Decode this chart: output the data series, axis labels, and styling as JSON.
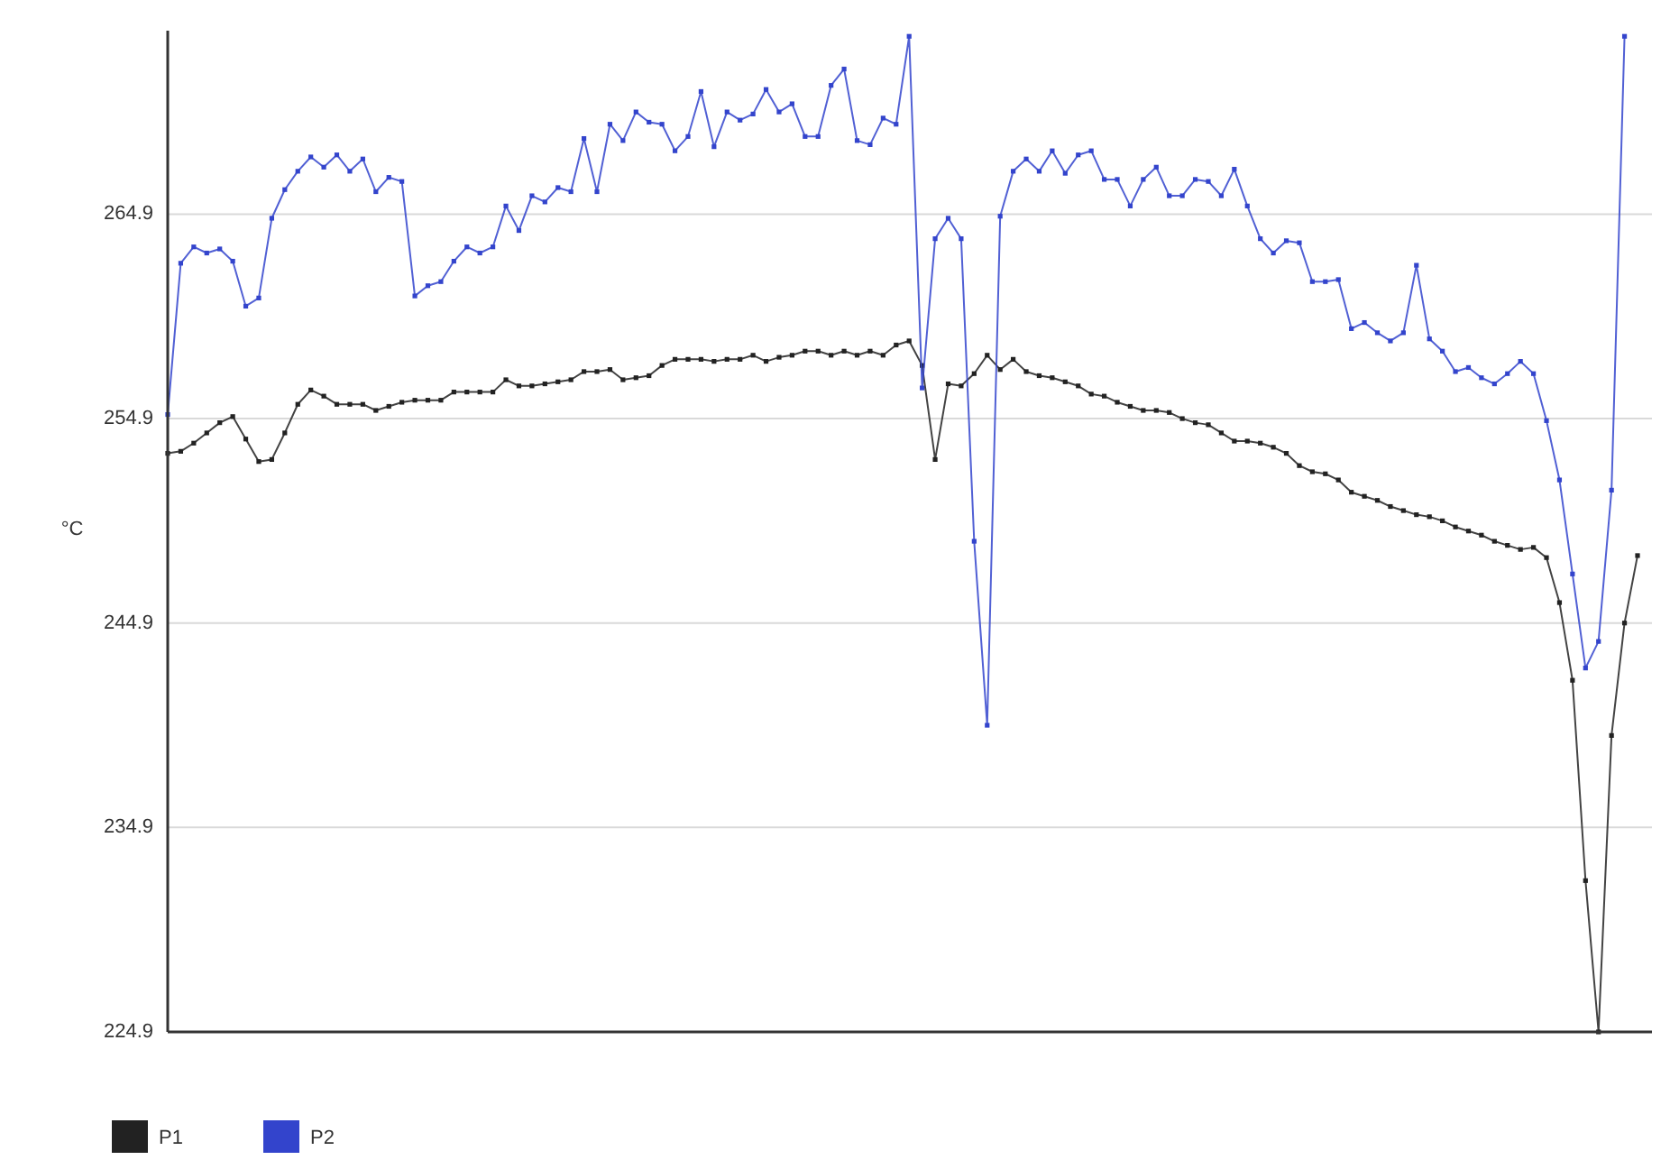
{
  "chart_data": {
    "type": "line",
    "ylabel": "°C",
    "categories": [
      null,
      null,
      null,
      null,
      null,
      null,
      null,
      null,
      null,
      null,
      null,
      null,
      null,
      null,
      null,
      null,
      null,
      null,
      null,
      null,
      null,
      null,
      null,
      null,
      null,
      null,
      null,
      null,
      null,
      null,
      null,
      null,
      null,
      null,
      null,
      null,
      null,
      null,
      null,
      null,
      null,
      null,
      null,
      null,
      null,
      null,
      null,
      null,
      null,
      null,
      null,
      null,
      null,
      null,
      null,
      null,
      null,
      null,
      null,
      null,
      null,
      null,
      null,
      null,
      null,
      null,
      null,
      null,
      null,
      null,
      null,
      null,
      null,
      null,
      null,
      null,
      null,
      null,
      null,
      null,
      null,
      null,
      null,
      null,
      null,
      null,
      null,
      null,
      null,
      null,
      null,
      null,
      null,
      null,
      null,
      null,
      null,
      null,
      null,
      null,
      null,
      null,
      null,
      null,
      null,
      null,
      null,
      null,
      null,
      null,
      null,
      null,
      null,
      null
    ],
    "series": [
      {
        "name": "P1",
        "color": "#222222",
        "values": [
          253.2,
          253.3,
          253.7,
          254.2,
          254.7,
          255.0,
          253.9,
          252.8,
          252.9,
          254.2,
          255.6,
          256.3,
          256.0,
          255.6,
          255.6,
          255.6,
          255.3,
          255.5,
          255.7,
          255.8,
          255.8,
          255.8,
          256.2,
          256.2,
          256.2,
          256.2,
          256.8,
          256.5,
          256.5,
          256.6,
          256.7,
          256.8,
          257.2,
          257.2,
          257.3,
          256.8,
          256.9,
          257.0,
          257.5,
          257.8,
          257.8,
          257.8,
          257.7,
          257.8,
          257.8,
          258.0,
          257.7,
          257.9,
          258.0,
          258.2,
          258.2,
          258.0,
          258.2,
          258.0,
          258.2,
          258.0,
          258.5,
          258.7,
          257.5,
          252.9,
          256.6,
          256.5,
          257.1,
          258.0,
          257.3,
          257.8,
          257.2,
          257.0,
          256.9,
          256.7,
          256.5,
          256.1,
          256.0,
          255.7,
          255.5,
          255.3,
          255.3,
          255.2,
          254.9,
          254.7,
          254.6,
          254.2,
          253.8,
          253.8,
          253.7,
          253.5,
          253.2,
          252.6,
          252.3,
          252.2,
          251.9,
          251.3,
          251.1,
          250.9,
          250.6,
          250.4,
          250.2,
          250.1,
          249.9,
          249.6,
          249.4,
          249.2,
          248.9,
          248.7,
          248.5,
          248.6,
          248.1,
          245.9,
          242.1,
          232.3,
          224.9,
          239.4,
          244.9,
          248.2
        ]
      },
      {
        "name": "P2",
        "color": "#3344cc",
        "values": [
          255.1,
          262.5,
          263.3,
          263.0,
          263.2,
          262.6,
          260.4,
          260.8,
          264.7,
          266.1,
          267.0,
          267.7,
          267.2,
          267.8,
          267.0,
          267.6,
          266.0,
          266.7,
          266.5,
          260.9,
          261.4,
          261.6,
          262.6,
          263.3,
          263.0,
          263.3,
          265.3,
          264.1,
          265.8,
          265.5,
          266.2,
          266.0,
          268.6,
          266.0,
          269.3,
          268.5,
          269.9,
          269.4,
          269.3,
          268.0,
          268.7,
          270.9,
          268.2,
          269.9,
          269.5,
          269.8,
          271.0,
          269.9,
          270.3,
          268.7,
          268.7,
          271.2,
          272.0,
          268.5,
          268.3,
          269.6,
          269.3,
          273.6,
          256.4,
          263.7,
          264.7,
          263.7,
          248.9,
          239.9,
          264.8,
          267.0,
          267.6,
          267.0,
          268.0,
          266.9,
          267.8,
          268.0,
          266.6,
          266.6,
          265.3,
          266.6,
          267.2,
          265.8,
          265.8,
          266.6,
          266.5,
          265.8,
          267.1,
          265.3,
          263.7,
          263.0,
          263.6,
          263.5,
          261.6,
          261.6,
          261.7,
          259.3,
          259.6,
          259.1,
          258.7,
          259.1,
          262.4,
          258.8,
          258.2,
          257.2,
          257.4,
          256.9,
          256.6,
          257.1,
          257.7,
          257.1,
          254.8,
          251.9,
          247.3,
          242.7,
          244.0,
          251.4,
          273.6,
          null
        ]
      }
    ],
    "ylim": [
      224.9,
      273.7
    ],
    "yticks": [
      224.9,
      234.9,
      244.9,
      254.9,
      264.9
    ],
    "grid": "y",
    "legend": "bottom left",
    "marker": "square",
    "line_style": "solid"
  }
}
